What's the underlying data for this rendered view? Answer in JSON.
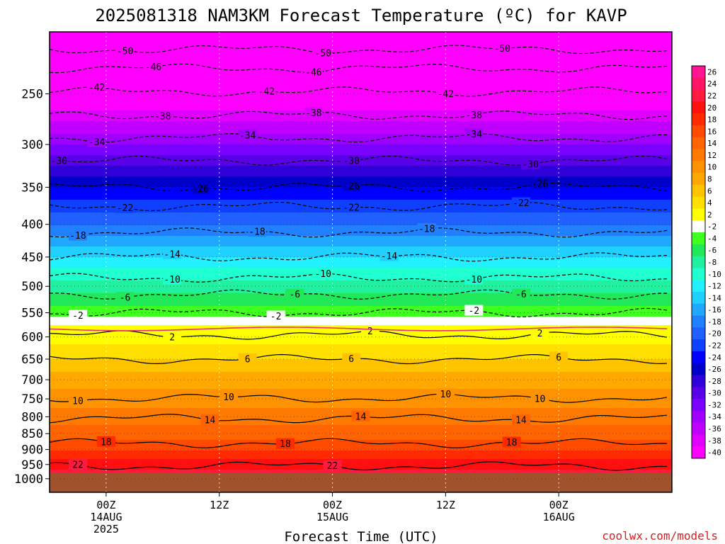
{
  "title": "2025081318 NAM3KM Forecast Temperature (ºC) for KAVP",
  "credit": "coolwx.com/models",
  "credit_color": "#d42020",
  "chart_data": {
    "type": "heatmap",
    "title": "2025081318 NAM3KM Forecast Temperature (ºC) for KAVP",
    "xlabel": "Forecast Time (UTC)",
    "ylabel": "",
    "ylim": [
      1050,
      200
    ],
    "xlim": [
      "2025-08-13 18Z",
      "2025-08-16 12Z"
    ],
    "y_scale": "log",
    "y_ticks": [
      250,
      300,
      350,
      400,
      450,
      500,
      550,
      600,
      650,
      700,
      750,
      800,
      850,
      900,
      950,
      1000
    ],
    "x_ticks": [
      {
        "time": "2025-08-14 00Z",
        "lines": [
          "00Z",
          "14AUG",
          "2025"
        ]
      },
      {
        "time": "2025-08-14 12Z",
        "lines": [
          "12Z"
        ]
      },
      {
        "time": "2025-08-15 00Z",
        "lines": [
          "00Z",
          "15AUG"
        ]
      },
      {
        "time": "2025-08-15 12Z",
        "lines": [
          "12Z"
        ]
      },
      {
        "time": "2025-08-16 00Z",
        "lines": [
          "00Z",
          "16AUG"
        ]
      }
    ],
    "grid": true,
    "ground_color": "#a0522d",
    "surface_pressure": 980,
    "freezing_line": {
      "color": "#e8307a",
      "pressure": 583
    },
    "colorbar": {
      "position": "right",
      "labels": [
        "26",
        "24",
        "22",
        "20",
        "18",
        "16",
        "14",
        "12",
        "10",
        "8",
        "6",
        "4",
        "2",
        "-2",
        "-4",
        "-6",
        "-8",
        "-10",
        "-12",
        "-14",
        "-16",
        "-18",
        "-20",
        "-22",
        "-24",
        "-26",
        "-28",
        "-30",
        "-32",
        "-34",
        "-36",
        "-38",
        "-40"
      ],
      "colors": [
        "#ff1493",
        "#ff1466",
        "#ff1a40",
        "#ff1010",
        "#ff2a00",
        "#ff4a00",
        "#ff6400",
        "#ff7a00",
        "#ff9200",
        "#ffa800",
        "#ffc400",
        "#ffe000",
        "#ffff00",
        "#ffffff",
        "#40ff20",
        "#20e858",
        "#20f0a0",
        "#20ffd0",
        "#20f0ff",
        "#20d0ff",
        "#20a8ff",
        "#2080ff",
        "#2060ff",
        "#1040ff",
        "#0000ff",
        "#0000c8",
        "#3000d8",
        "#5a00e8",
        "#7a00ff",
        "#a000ff",
        "#c000ff",
        "#e000ff",
        "#ff00ff"
      ]
    },
    "profile": [
      {
        "pressure": 980,
        "temp": 23
      },
      {
        "pressure": 950,
        "temp": 21
      },
      {
        "pressure": 900,
        "temp": 18
      },
      {
        "pressure": 850,
        "temp": 15
      },
      {
        "pressure": 800,
        "temp": 13
      },
      {
        "pressure": 750,
        "temp": 11
      },
      {
        "pressure": 700,
        "temp": 9
      },
      {
        "pressure": 650,
        "temp": 6
      },
      {
        "pressure": 600,
        "temp": 3
      },
      {
        "pressure": 550,
        "temp": -3
      },
      {
        "pressure": 500,
        "temp": -7
      },
      {
        "pressure": 450,
        "temp": -12
      },
      {
        "pressure": 400,
        "temp": -18
      },
      {
        "pressure": 350,
        "temp": -24
      },
      {
        "pressure": 300,
        "temp": -32
      },
      {
        "pressure": 250,
        "temp": -41
      },
      {
        "pressure": 200,
        "temp": -52
      }
    ],
    "contours": [
      {
        "value": -50,
        "pressure": 213,
        "labels": [
          {
            "time": "2025-08-14 02Z",
            "text": "-50"
          },
          {
            "time": "2025-08-14 23Z",
            "text": "-50"
          },
          {
            "time": "2025-08-15 18Z",
            "text": "-50"
          }
        ]
      },
      {
        "value": -46,
        "pressure": 228,
        "labels": [
          {
            "time": "2025-08-14 05Z",
            "text": "-46"
          },
          {
            "time": "2025-08-14 22Z",
            "text": "-46"
          }
        ]
      },
      {
        "value": -42,
        "pressure": 248,
        "labels": [
          {
            "time": "2025-08-13 23Z",
            "text": "-42"
          },
          {
            "time": "2025-08-14 17Z",
            "text": "-42"
          },
          {
            "time": "2025-08-15 12Z",
            "text": "-42"
          }
        ]
      },
      {
        "value": -38,
        "pressure": 270,
        "labels": [
          {
            "time": "2025-08-14 06Z",
            "text": "-38"
          },
          {
            "time": "2025-08-14 22Z",
            "text": "-38"
          },
          {
            "time": "2025-08-15 15Z",
            "text": "-38"
          }
        ]
      },
      {
        "value": -34,
        "pressure": 293,
        "labels": [
          {
            "time": "2025-08-13 23Z",
            "text": "-34"
          },
          {
            "time": "2025-08-14 15Z",
            "text": "-34"
          },
          {
            "time": "2025-08-15 15Z",
            "text": "-34"
          }
        ]
      },
      {
        "value": -30,
        "pressure": 318,
        "labels": [
          {
            "time": "2025-08-13 19Z",
            "text": "-30"
          },
          {
            "time": "2025-08-15 02Z",
            "text": "-30"
          },
          {
            "time": "2025-08-15 21Z",
            "text": "-30"
          }
        ]
      },
      {
        "value": -26,
        "pressure": 350,
        "labels": [
          {
            "time": "2025-08-14 10Z",
            "text": "-26"
          },
          {
            "time": "2025-08-15 02Z",
            "text": "-26"
          },
          {
            "time": "2025-08-15 22Z",
            "text": "-26"
          }
        ]
      },
      {
        "value": -22,
        "pressure": 375,
        "labels": [
          {
            "time": "2025-08-14 02Z",
            "text": "-22"
          },
          {
            "time": "2025-08-15 02Z",
            "text": "-22"
          },
          {
            "time": "2025-08-15 20Z",
            "text": "-22"
          }
        ]
      },
      {
        "value": -18,
        "pressure": 412,
        "labels": [
          {
            "time": "2025-08-13 21Z",
            "text": "-18"
          },
          {
            "time": "2025-08-14 16Z",
            "text": "-18"
          },
          {
            "time": "2025-08-15 10Z",
            "text": "-18"
          }
        ]
      },
      {
        "value": -14,
        "pressure": 450,
        "labels": [
          {
            "time": "2025-08-14 07Z",
            "text": "-14"
          },
          {
            "time": "2025-08-15 06Z",
            "text": "-14"
          }
        ]
      },
      {
        "value": -10,
        "pressure": 485,
        "labels": [
          {
            "time": "2025-08-14 07Z",
            "text": "-10"
          },
          {
            "time": "2025-08-14 23Z",
            "text": "-10"
          },
          {
            "time": "2025-08-15 15Z",
            "text": "-10"
          }
        ]
      },
      {
        "value": -6,
        "pressure": 515,
        "labels": [
          {
            "time": "2025-08-14 02Z",
            "text": "-6"
          },
          {
            "time": "2025-08-14 20Z",
            "text": "-6"
          },
          {
            "time": "2025-08-15 20Z",
            "text": "-6"
          }
        ]
      },
      {
        "value": -2,
        "pressure": 550,
        "labels": [
          {
            "time": "2025-08-13 21Z",
            "text": "-2"
          },
          {
            "time": "2025-08-14 18Z",
            "text": "-2"
          },
          {
            "time": "2025-08-15 15Z",
            "text": "-2"
          }
        ]
      },
      {
        "value": 2,
        "pressure": 596,
        "labels": [
          {
            "time": "2025-08-14 07Z",
            "text": "2"
          },
          {
            "time": "2025-08-15 04Z",
            "text": "2"
          },
          {
            "time": "2025-08-15 22Z",
            "text": "2"
          }
        ]
      },
      {
        "value": 6,
        "pressure": 650,
        "labels": [
          {
            "time": "2025-08-14 15Z",
            "text": "6"
          },
          {
            "time": "2025-08-15 02Z",
            "text": "6"
          },
          {
            "time": "2025-08-16 00Z",
            "text": "6"
          }
        ]
      },
      {
        "value": 10,
        "pressure": 748,
        "labels": [
          {
            "time": "2025-08-13 21Z",
            "text": "10"
          },
          {
            "time": "2025-08-14 13Z",
            "text": "10"
          },
          {
            "time": "2025-08-15 12Z",
            "text": "10"
          },
          {
            "time": "2025-08-15 22Z",
            "text": "10"
          }
        ]
      },
      {
        "value": 14,
        "pressure": 805,
        "labels": [
          {
            "time": "2025-08-14 11Z",
            "text": "14"
          },
          {
            "time": "2025-08-15 03Z",
            "text": "14"
          },
          {
            "time": "2025-08-15 20Z",
            "text": "14"
          }
        ]
      },
      {
        "value": 18,
        "pressure": 880,
        "labels": [
          {
            "time": "2025-08-14 00Z",
            "text": "18"
          },
          {
            "time": "2025-08-14 19Z",
            "text": "18"
          },
          {
            "time": "2025-08-15 19Z",
            "text": "18"
          }
        ]
      },
      {
        "value": 22,
        "pressure": 955,
        "labels": [
          {
            "time": "2025-08-13 21Z",
            "text": "22"
          },
          {
            "time": "2025-08-15 00Z",
            "text": "22"
          }
        ]
      }
    ]
  }
}
